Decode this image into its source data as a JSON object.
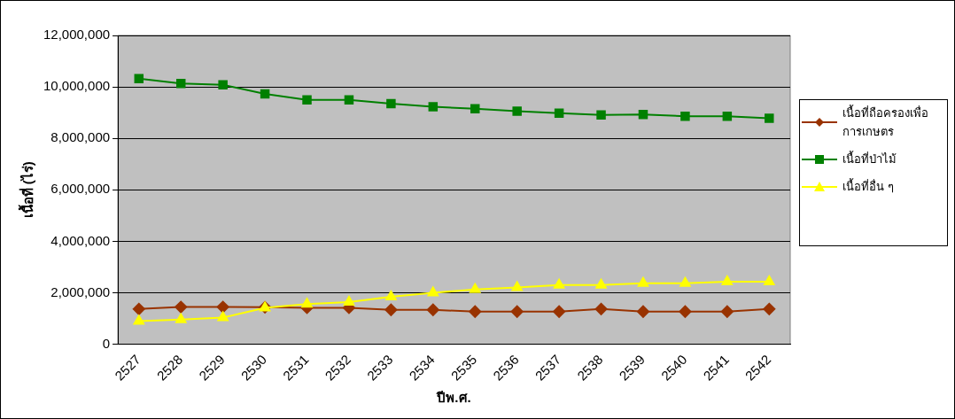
{
  "chart_data": {
    "type": "line",
    "xlabel": "ปีพ.ศ.",
    "ylabel": "เนื้อที่ (ไร่)",
    "categories": [
      "2527",
      "2528",
      "2529",
      "2530",
      "2531",
      "2532",
      "2533",
      "2534",
      "2535",
      "2536",
      "2537",
      "2538",
      "2539",
      "2540",
      "2541",
      "2542"
    ],
    "series": [
      {
        "name": "เนื้อที่ถือครองเพื่อการเกษตร",
        "color": "#993300",
        "marker": "diamond",
        "values": [
          1370000,
          1450000,
          1450000,
          1440000,
          1420000,
          1420000,
          1340000,
          1340000,
          1270000,
          1270000,
          1270000,
          1370000,
          1270000,
          1270000,
          1270000,
          1370000
        ]
      },
      {
        "name": "เนื้อที่ป่าไม้",
        "color": "#008000",
        "marker": "square",
        "values": [
          10320000,
          10130000,
          10080000,
          9730000,
          9500000,
          9500000,
          9350000,
          9230000,
          9150000,
          9060000,
          8980000,
          8910000,
          8930000,
          8860000,
          8860000,
          8780000
        ]
      },
      {
        "name": "เนื้อที่อื่น ๆ",
        "color": "#ffff00",
        "marker": "triangle",
        "values": [
          900000,
          960000,
          1040000,
          1420000,
          1560000,
          1640000,
          1850000,
          2000000,
          2130000,
          2210000,
          2300000,
          2300000,
          2370000,
          2370000,
          2430000,
          2430000
        ]
      }
    ],
    "ylim": [
      0,
      12000000
    ],
    "yticks": [
      {
        "value": 0,
        "label": "0"
      },
      {
        "value": 2000000,
        "label": "2,000,000"
      },
      {
        "value": 4000000,
        "label": "4,000,000"
      },
      {
        "value": 6000000,
        "label": "6,000,000"
      },
      {
        "value": 8000000,
        "label": "8,000,000"
      },
      {
        "value": 10000000,
        "label": "10,000,000"
      },
      {
        "value": 12000000,
        "label": "12,000,000"
      }
    ],
    "grid": "y",
    "legend": "right",
    "line_style": "solid"
  }
}
